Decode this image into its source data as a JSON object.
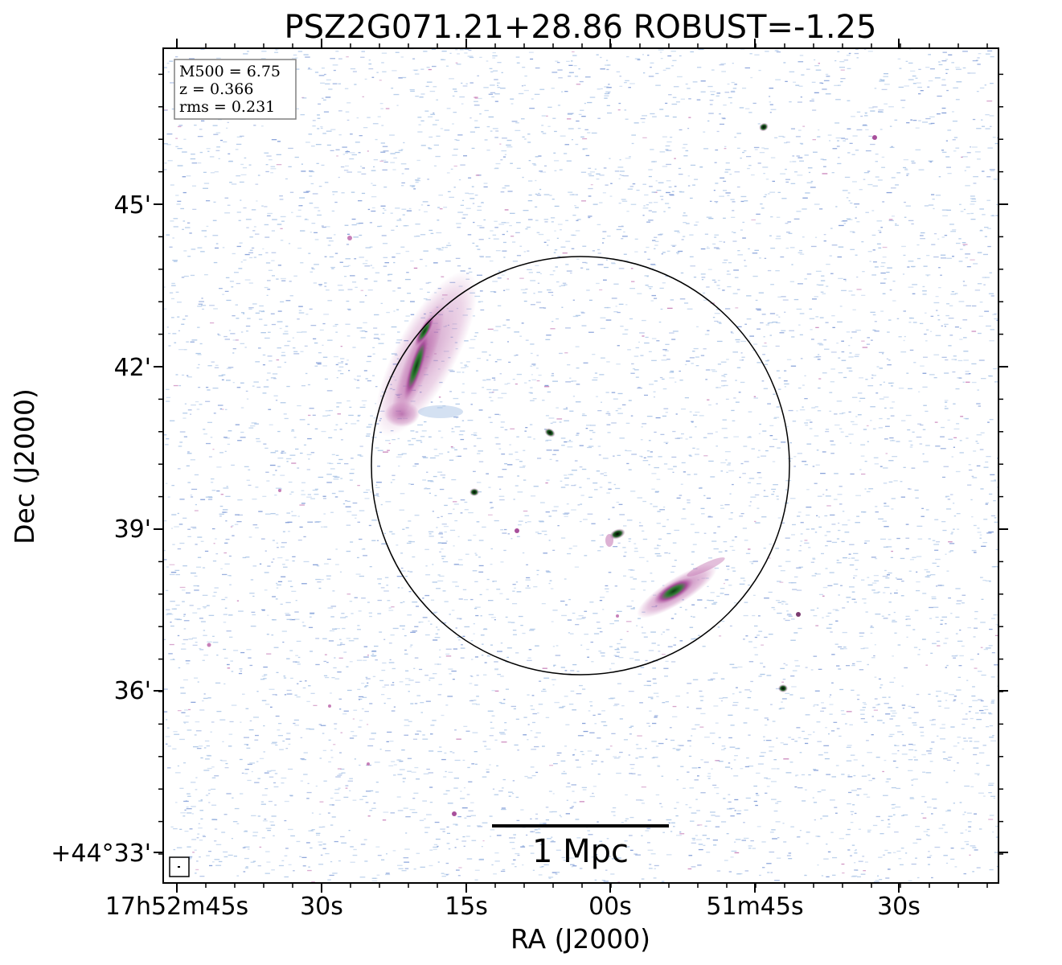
{
  "figure": {
    "title": "PSZ2G071.21+28.86 ROBUST=-1.25",
    "xlabel": "RA (J2000)",
    "ylabel": "Dec (J2000)",
    "x_tick_labels": [
      "17h52m45s",
      "30s",
      "15s",
      "00s",
      "51m45s",
      "30s"
    ],
    "y_tick_labels": [
      "45'",
      "42'",
      "39'",
      "36'",
      "+44°33'"
    ],
    "info_box": [
      "M500 = 6.75",
      "z = 0.366",
      "rms = 0.231"
    ],
    "scale_bar_label": "1 Mpc"
  },
  "colors": {
    "frame": "#000000",
    "noise_light": "#a9c4e6",
    "noise_dark": "#7f9bd6",
    "emission_pink": "#c77fb8",
    "emission_magenta": "#a84f9b",
    "emission_green": "#2e7d32",
    "emission_dark": "#0f3d14",
    "info_box_border": "#808080"
  }
}
